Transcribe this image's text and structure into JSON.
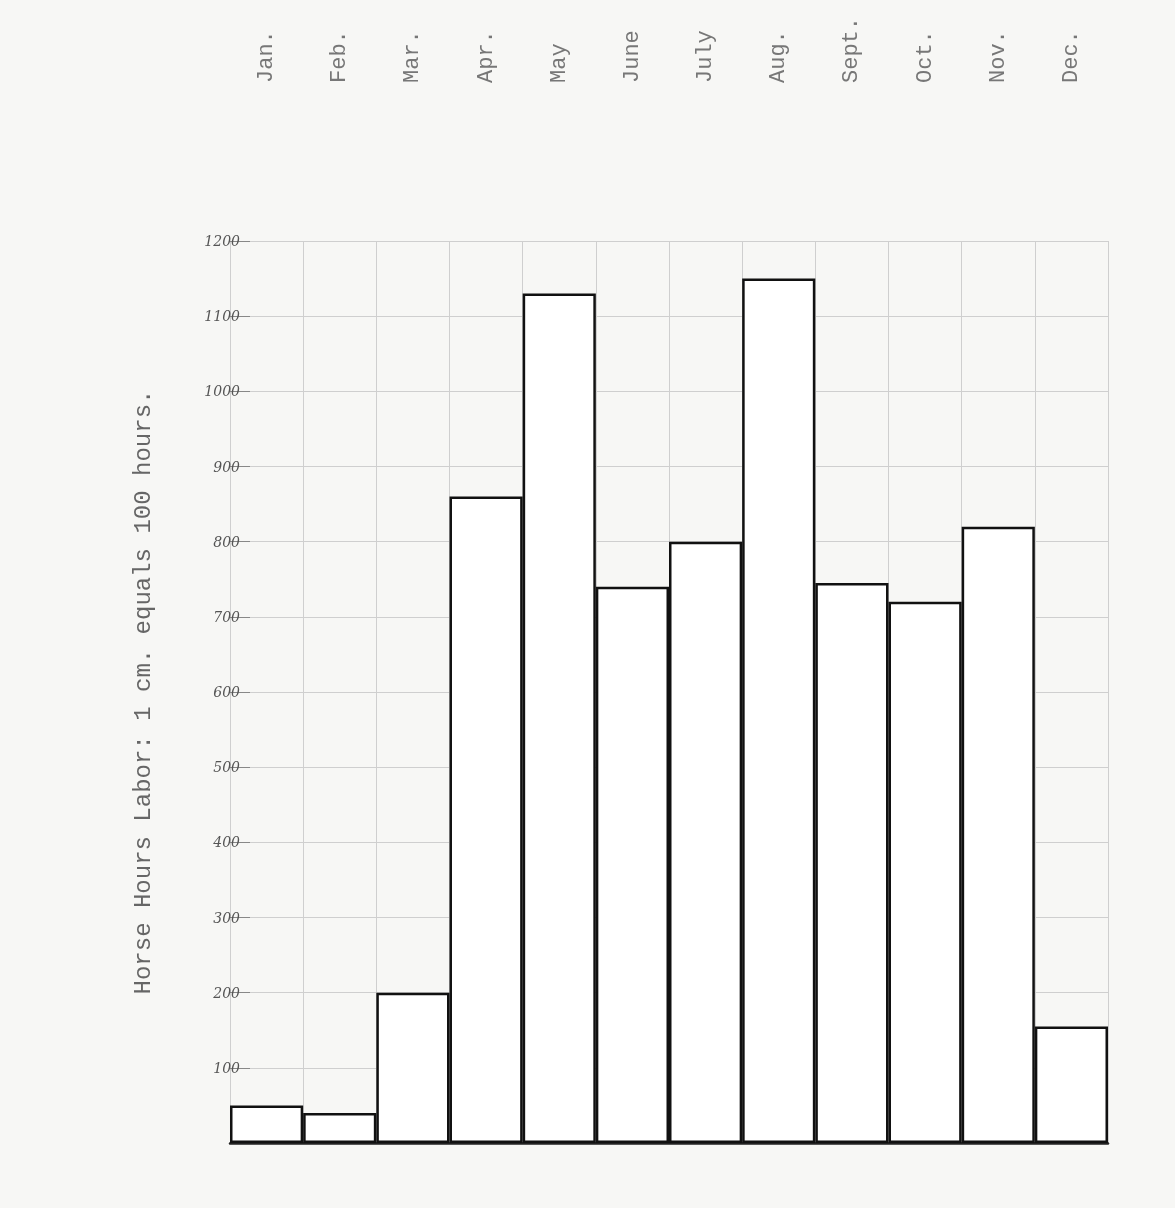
{
  "chart_data": {
    "type": "bar",
    "ylabel": "Horse Hours Labor: 1 cm. equals 100 hours.",
    "categories": [
      "Jan.",
      "Feb.",
      "Mar.",
      "Apr.",
      "May",
      "June",
      "July",
      "Aug.",
      "Sept.",
      "Oct.",
      "Nov.",
      "Dec."
    ],
    "values": [
      50,
      40,
      200,
      860,
      1130,
      740,
      800,
      1150,
      745,
      720,
      820,
      155
    ],
    "color": "#ffffff",
    "ylim": [
      0,
      1200
    ],
    "yticks": [
      100,
      200,
      300,
      400,
      500,
      600,
      700,
      800,
      900,
      1000,
      1100,
      1200
    ],
    "grid": true
  }
}
